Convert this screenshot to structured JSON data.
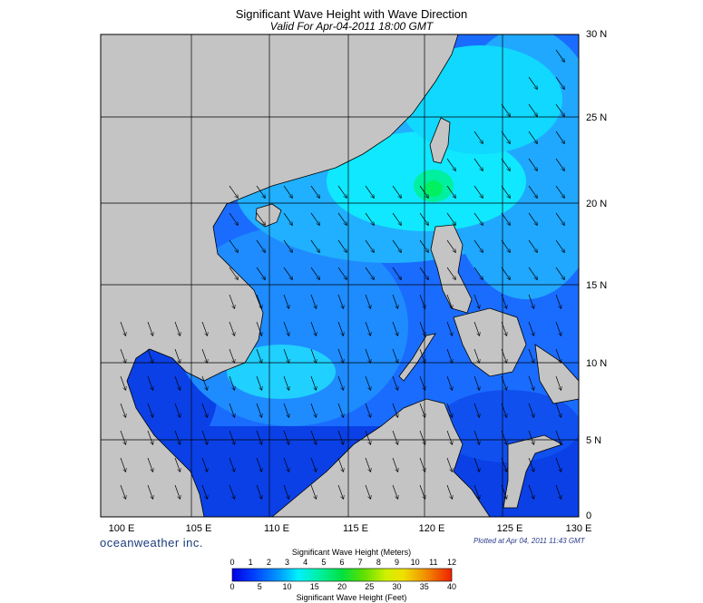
{
  "title": "Significant Wave Height with Wave Direction",
  "subtitle": "Valid For Apr-04-2011 18:00 GMT",
  "lat_labels": [
    "30 N",
    "25 N",
    "20 N",
    "15 N",
    "10 N",
    "5 N",
    "0"
  ],
  "lon_labels": [
    "100 E",
    "105 E",
    "110 E",
    "115 E",
    "120 E",
    "125 E",
    "130 E"
  ],
  "brand": "oceanweather inc.",
  "plotted": "Plotted at Apr 04, 2011 11:43 GMT",
  "colorbar": {
    "title_meters": "Significant Wave Height (Meters)",
    "title_feet": "Significant Wave Height (Feet)",
    "meters_ticks": [
      "0",
      "1",
      "2",
      "3",
      "4",
      "5",
      "6",
      "7",
      "8",
      "9",
      "10",
      "11",
      "12"
    ],
    "feet_ticks": [
      "0",
      "5",
      "10",
      "15",
      "20",
      "25",
      "30",
      "35",
      "40"
    ],
    "colors": [
      "#0000e0",
      "#0030ff",
      "#0070ff",
      "#00b0ff",
      "#00f0ff",
      "#00f0a0",
      "#00e040",
      "#40e000",
      "#a0f000",
      "#f0f000",
      "#f0b000",
      "#f07000",
      "#f03000"
    ]
  },
  "colors": {
    "land": "#c4c4c4",
    "sea_low": "#1040e0",
    "sea_mid": "#1a8cff",
    "sea_high": "#00f0ff",
    "peak": "#00f080"
  }
}
